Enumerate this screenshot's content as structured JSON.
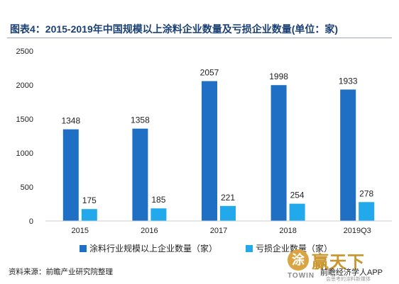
{
  "header": {
    "title": "图表4：2015-2019年中国规模以上涂料企业数量及亏损企业数量(单位：家)"
  },
  "colors": {
    "series_1": "#1f6fc5",
    "series_2": "#22a9ec",
    "title": "#1a3f73"
  },
  "chart_data": {
    "type": "bar",
    "title": "图表4：2015-2019年中国规模以上涂料企业数量及亏损企业数量(单位：家)",
    "categories": [
      "2015",
      "2016",
      "2017",
      "2018",
      "2019Q3"
    ],
    "series": [
      {
        "name": "涂料行业规模以上企业数量（家）",
        "values": [
          1348,
          1358,
          2057,
          1998,
          1933
        ]
      },
      {
        "name": "亏损企业数量（家）",
        "values": [
          175,
          185,
          221,
          254,
          278
        ]
      }
    ],
    "yticks": [
      "0",
      "500",
      "1000",
      "1500",
      "2000",
      "2500"
    ],
    "ylim": [
      0,
      2500
    ],
    "xlabel": "",
    "ylabel": "",
    "legend_position": "bottom",
    "grid": false
  },
  "footer": {
    "source": "资料来源：前瞻产业研究院整理"
  },
  "watermark": {
    "seal_char": "涂",
    "big_text": "赢天下",
    "brand": "TOWIN",
    "app_text": "前瞻经济学人APP",
    "sub_text": "会思考的涂料新媒体"
  }
}
